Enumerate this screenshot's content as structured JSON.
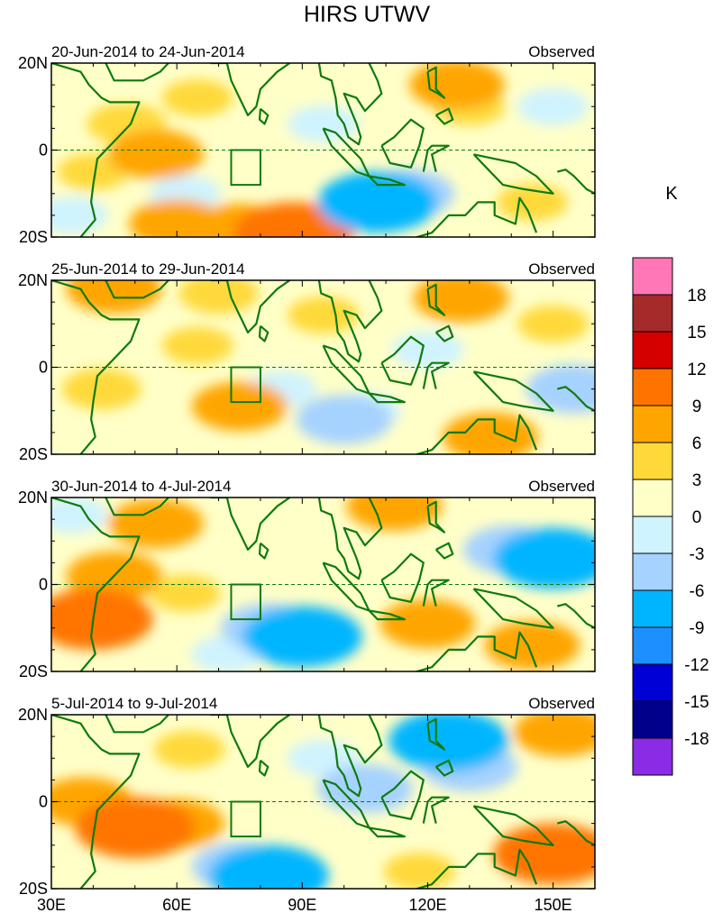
{
  "chart_data": {
    "type": "heatmap",
    "title": "HIRS UTWV",
    "units": "K",
    "x_range": [
      30,
      160
    ],
    "y_range": [
      -20,
      20
    ],
    "x_ticks": [
      30,
      60,
      90,
      120,
      150
    ],
    "x_tick_labels": [
      "30E",
      "60E",
      "90E",
      "120E",
      "150E"
    ],
    "y_ticks": [
      20,
      0,
      -20
    ],
    "y_tick_labels": [
      "20N",
      "0",
      "20S"
    ],
    "target_box": {
      "lon": [
        73,
        80
      ],
      "lat": [
        -8,
        0
      ]
    },
    "colorbar": {
      "levels": [
        18,
        15,
        12,
        9,
        6,
        3,
        0,
        -3,
        -6,
        -9,
        -12,
        -15,
        -18
      ],
      "level_labels": [
        "18",
        "15",
        "12",
        "9",
        "6",
        "3",
        "0",
        "-3",
        "-6",
        "-9",
        "-12",
        "-15",
        "-18"
      ],
      "colors": [
        "#ff77b6",
        "#a52a2a",
        "#d40000",
        "#ff7400",
        "#ffa500",
        "#ffd93a",
        "#ffffc8",
        "#cff3ff",
        "#a6d2ff",
        "#00b5ff",
        "#1e8fff",
        "#0000d4",
        "#00008a",
        "#8b2be5"
      ]
    },
    "panels": [
      {
        "period": "20-Jun-2014 to 24-Jun-2014",
        "label": "Observed",
        "features": [
          {
            "lon": 48,
            "lat": 6,
            "value": 4
          },
          {
            "lon": 55,
            "lat": -1,
            "value": 6
          },
          {
            "lon": 65,
            "lat": 12,
            "value": 3
          },
          {
            "lon": 40,
            "lat": -5,
            "value": 3
          },
          {
            "lon": 75,
            "lat": -18,
            "value": 6
          },
          {
            "lon": 88,
            "lat": -19,
            "value": 9
          },
          {
            "lon": 60,
            "lat": -17,
            "value": 6
          },
          {
            "lon": 95,
            "lat": 6,
            "value": -3
          },
          {
            "lon": 108,
            "lat": -12,
            "value": -9
          },
          {
            "lon": 115,
            "lat": -10,
            "value": -6
          },
          {
            "lon": 127,
            "lat": 15,
            "value": 6
          },
          {
            "lon": 130,
            "lat": 10,
            "value": 3
          },
          {
            "lon": 145,
            "lat": -12,
            "value": 3
          },
          {
            "lon": 150,
            "lat": 10,
            "value": -3
          },
          {
            "lon": 62,
            "lat": -10,
            "value": -3
          },
          {
            "lon": 35,
            "lat": -15,
            "value": -3
          }
        ]
      },
      {
        "period": "25-Jun-2014 to 29-Jun-2014",
        "label": "Observed",
        "features": [
          {
            "lon": 45,
            "lat": 18,
            "value": 6
          },
          {
            "lon": 70,
            "lat": 17,
            "value": 4
          },
          {
            "lon": 42,
            "lat": -5,
            "value": 4
          },
          {
            "lon": 65,
            "lat": 5,
            "value": 3
          },
          {
            "lon": 75,
            "lat": -9,
            "value": 6
          },
          {
            "lon": 85,
            "lat": -5,
            "value": -3
          },
          {
            "lon": 100,
            "lat": -12,
            "value": -6
          },
          {
            "lon": 105,
            "lat": -10,
            "value": -3
          },
          {
            "lon": 120,
            "lat": 4,
            "value": -3
          },
          {
            "lon": 128,
            "lat": 16,
            "value": 6
          },
          {
            "lon": 155,
            "lat": -5,
            "value": -6
          },
          {
            "lon": 150,
            "lat": 10,
            "value": 3
          },
          {
            "lon": 135,
            "lat": -16,
            "value": 6
          },
          {
            "lon": 95,
            "lat": 12,
            "value": 3
          }
        ]
      },
      {
        "period": "30-Jun-2014 to 4-Jul-2014",
        "label": "Observed",
        "features": [
          {
            "lon": 55,
            "lat": 14,
            "value": 6
          },
          {
            "lon": 45,
            "lat": 2,
            "value": 6
          },
          {
            "lon": 40,
            "lat": -8,
            "value": 9
          },
          {
            "lon": 62,
            "lat": -2,
            "value": 3
          },
          {
            "lon": 90,
            "lat": -12,
            "value": -9
          },
          {
            "lon": 82,
            "lat": -10,
            "value": -6
          },
          {
            "lon": 72,
            "lat": -16,
            "value": -3
          },
          {
            "lon": 120,
            "lat": -9,
            "value": 6
          },
          {
            "lon": 112,
            "lat": 18,
            "value": 6
          },
          {
            "lon": 140,
            "lat": 8,
            "value": -6
          },
          {
            "lon": 150,
            "lat": 6,
            "value": -9
          },
          {
            "lon": 145,
            "lat": -14,
            "value": 6
          },
          {
            "lon": 35,
            "lat": 16,
            "value": -3
          }
        ]
      },
      {
        "period": "5-Jul-2014 to 9-Jul-2014",
        "label": "Observed",
        "features": [
          {
            "lon": 50,
            "lat": -6,
            "value": 9
          },
          {
            "lon": 38,
            "lat": 0,
            "value": 6
          },
          {
            "lon": 60,
            "lat": -5,
            "value": 6
          },
          {
            "lon": 63,
            "lat": 12,
            "value": 3
          },
          {
            "lon": 82,
            "lat": -17,
            "value": -9
          },
          {
            "lon": 75,
            "lat": -15,
            "value": -6
          },
          {
            "lon": 105,
            "lat": 3,
            "value": -6
          },
          {
            "lon": 125,
            "lat": 14,
            "value": -9
          },
          {
            "lon": 130,
            "lat": 8,
            "value": -6
          },
          {
            "lon": 152,
            "lat": 16,
            "value": 6
          },
          {
            "lon": 150,
            "lat": -12,
            "value": 9
          },
          {
            "lon": 95,
            "lat": 10,
            "value": -3
          },
          {
            "lon": 118,
            "lat": -16,
            "value": 3
          }
        ]
      }
    ]
  }
}
